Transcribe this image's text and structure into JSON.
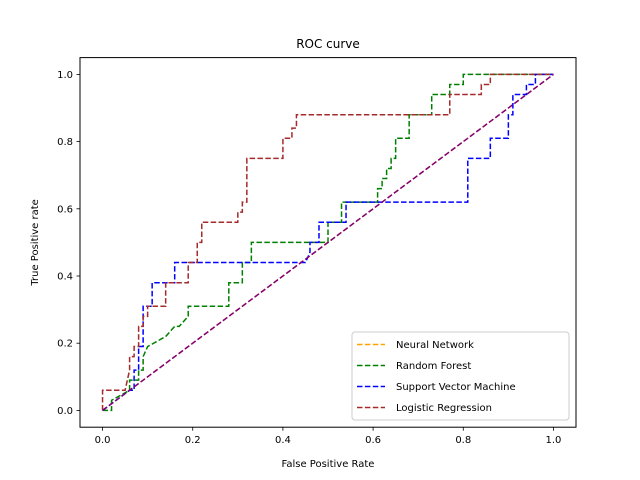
{
  "chart_data": {
    "type": "line",
    "title": "ROC curve",
    "xlabel": "False Positive Rate",
    "ylabel": "True Positive rate",
    "xlim": [
      -0.05,
      1.05
    ],
    "ylim": [
      -0.05,
      1.05
    ],
    "xticks": [
      "0.0",
      "0.2",
      "0.4",
      "0.6",
      "0.8",
      "1.0"
    ],
    "yticks": [
      "0.0",
      "0.2",
      "0.4",
      "0.6",
      "0.8",
      "1.0"
    ],
    "grid": false,
    "legend_position": "lower-right",
    "series": [
      {
        "name": "Neural Network",
        "color": "#ffa500",
        "x": [
          0,
          1
        ],
        "y": [
          0,
          1
        ]
      },
      {
        "name": "Random Forest",
        "color": "#008000",
        "x": [
          0,
          0.02,
          0.02,
          0.06,
          0.06,
          0.08,
          0.08,
          0.09,
          0.09,
          0.1,
          0.14,
          0.16,
          0.17,
          0.19,
          0.19,
          0.22,
          0.25,
          0.28,
          0.28,
          0.31,
          0.31,
          0.33,
          0.33,
          0.47,
          0.47,
          0.5,
          0.5,
          0.53,
          0.53,
          0.61,
          0.61,
          0.62,
          0.62,
          0.63,
          0.63,
          0.64,
          0.64,
          0.65,
          0.65,
          0.68,
          0.68,
          0.73,
          0.73,
          0.77,
          0.77,
          0.8,
          0.8,
          1.0
        ],
        "y": [
          0,
          0,
          0.03,
          0.06,
          0.09,
          0.09,
          0.12,
          0.12,
          0.16,
          0.19,
          0.22,
          0.25,
          0.25,
          0.28,
          0.31,
          0.31,
          0.31,
          0.31,
          0.38,
          0.38,
          0.44,
          0.44,
          0.5,
          0.5,
          0.5,
          0.5,
          0.56,
          0.56,
          0.62,
          0.62,
          0.66,
          0.66,
          0.69,
          0.69,
          0.72,
          0.72,
          0.75,
          0.75,
          0.81,
          0.81,
          0.88,
          0.88,
          0.94,
          0.94,
          0.97,
          0.97,
          1.0,
          1.0
        ]
      },
      {
        "name": "Support Vector Machine",
        "color": "#0000ff",
        "x": [
          0,
          0.06,
          0.07,
          0.07,
          0.08,
          0.08,
          0.09,
          0.09,
          0.11,
          0.11,
          0.16,
          0.16,
          0.45,
          0.46,
          0.46,
          0.48,
          0.48,
          0.54,
          0.54,
          0.81,
          0.81,
          0.86,
          0.86,
          0.9,
          0.9,
          0.91,
          0.91,
          0.94,
          0.94,
          0.96,
          0.96,
          1.0
        ],
        "y": [
          0,
          0.06,
          0.06,
          0.12,
          0.12,
          0.19,
          0.19,
          0.31,
          0.31,
          0.38,
          0.38,
          0.44,
          0.44,
          0.47,
          0.5,
          0.5,
          0.56,
          0.56,
          0.62,
          0.62,
          0.75,
          0.75,
          0.81,
          0.81,
          0.88,
          0.88,
          0.94,
          0.94,
          0.97,
          0.97,
          1.0,
          1.0
        ]
      },
      {
        "name": "Logistic Regression",
        "color": "#a52a2a",
        "x": [
          0,
          0,
          0.05,
          0.06,
          0.06,
          0.07,
          0.07,
          0.08,
          0.08,
          0.09,
          0.09,
          0.1,
          0.1,
          0.14,
          0.14,
          0.19,
          0.19,
          0.21,
          0.21,
          0.22,
          0.22,
          0.3,
          0.3,
          0.31,
          0.31,
          0.32,
          0.32,
          0.4,
          0.4,
          0.42,
          0.42,
          0.43,
          0.43,
          0.68,
          0.68,
          0.77,
          0.77,
          0.84,
          0.84,
          0.86,
          0.86,
          1.0
        ],
        "y": [
          0,
          0.06,
          0.06,
          0.12,
          0.16,
          0.16,
          0.19,
          0.19,
          0.25,
          0.25,
          0.28,
          0.28,
          0.31,
          0.31,
          0.38,
          0.38,
          0.44,
          0.44,
          0.5,
          0.5,
          0.56,
          0.56,
          0.59,
          0.59,
          0.62,
          0.62,
          0.75,
          0.75,
          0.81,
          0.81,
          0.84,
          0.84,
          0.88,
          0.88,
          0.88,
          0.88,
          0.94,
          0.94,
          0.97,
          0.97,
          1.0,
          1.0
        ]
      },
      {
        "name": "",
        "color": "#800080",
        "x": [
          0,
          1
        ],
        "y": [
          0,
          1
        ]
      }
    ]
  }
}
